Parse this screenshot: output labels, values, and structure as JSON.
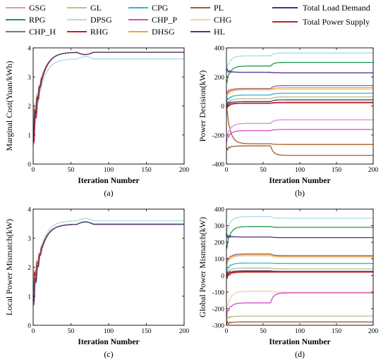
{
  "legend": {
    "items": [
      {
        "name": "GSG",
        "color": "#d88fd8"
      },
      {
        "name": "GL",
        "color": "#bdbd86"
      },
      {
        "name": "CPG",
        "color": "#2ab8d8"
      },
      {
        "name": "PL",
        "color": "#a85a28"
      },
      {
        "name": "RPG",
        "color": "#1f9a4f"
      },
      {
        "name": "DPSG",
        "color": "#a7dde3"
      },
      {
        "name": "CHP_P",
        "color": "#d84ad0"
      },
      {
        "name": "CHG",
        "color": "#f0cfb0"
      },
      {
        "name": "CHP_H",
        "color": "#8b6a8b"
      },
      {
        "name": "RHG",
        "color": "#c81e1e"
      },
      {
        "name": "DHSG",
        "color": "#f2a53a"
      },
      {
        "name": "HL",
        "color": "#4a3a7a"
      }
    ],
    "totals": [
      {
        "name": "Total Load Demand",
        "color": "#4b2a8c"
      },
      {
        "name": "Total Power Supply",
        "color": "#b5282e"
      }
    ]
  },
  "chart_data": [
    {
      "id": "a",
      "type": "line",
      "caption": "(a)",
      "xlabel": "Iteration Number",
      "ylabel": "Marginal Cost(Yuan/kWh)",
      "xlim": [
        0,
        200
      ],
      "ylim": [
        0,
        4
      ],
      "xticks": [
        0,
        50,
        100,
        150,
        200
      ],
      "yticks": [
        0,
        1,
        2,
        3,
        4
      ],
      "curve": "consensus",
      "series": [
        {
          "name": "GSG",
          "final": 3.85,
          "start": 0.5
        },
        {
          "name": "GL",
          "final": 3.85,
          "start": 1.2
        },
        {
          "name": "CPG",
          "final": 3.85,
          "start": 0.9
        },
        {
          "name": "PL",
          "final": 3.85,
          "start": 1.5
        },
        {
          "name": "RPG",
          "final": 3.85,
          "start": 1.1
        },
        {
          "name": "DPSG",
          "final": 3.62,
          "start": 0.8
        },
        {
          "name": "CHP_P",
          "final": 3.85,
          "start": 1.3
        },
        {
          "name": "CHG",
          "final": 3.85,
          "start": 1.6
        },
        {
          "name": "CHP_H",
          "final": 3.85,
          "start": 1.0
        },
        {
          "name": "RHG",
          "final": 3.85,
          "start": 0.7
        },
        {
          "name": "DHSG",
          "final": 3.85,
          "start": 1.4
        },
        {
          "name": "HL",
          "final": 3.85,
          "start": 1.2
        }
      ]
    },
    {
      "id": "b",
      "type": "line",
      "caption": "(b)",
      "xlabel": "Iteration Number",
      "ylabel": "Power Decision(kW)",
      "xlim": [
        0,
        200
      ],
      "ylim": [
        -400,
        400
      ],
      "xticks": [
        0,
        50,
        100,
        150,
        200
      ],
      "yticks": [
        -400,
        -200,
        0,
        200,
        400
      ],
      "curve": "step",
      "series": [
        {
          "name": "DPSG",
          "start": 250,
          "mid": 345,
          "final": 365
        },
        {
          "name": "RPG",
          "start": 160,
          "mid": 275,
          "final": 300
        },
        {
          "name": "Total Load Demand",
          "start": 245,
          "mid": 232,
          "final": 228
        },
        {
          "name": "CHP_H",
          "start": 90,
          "mid": 120,
          "final": 140
        },
        {
          "name": "DHSG",
          "start": 70,
          "mid": 115,
          "final": 125
        },
        {
          "name": "CHG",
          "start": 60,
          "mid": 110,
          "final": 115
        },
        {
          "name": "CPG",
          "start": 30,
          "mid": 75,
          "final": 88
        },
        {
          "name": "GL",
          "start": 10,
          "mid": 50,
          "final": 62
        },
        {
          "name": "HL",
          "start": 10,
          "mid": 30,
          "final": 42
        },
        {
          "name": "RHG",
          "start": -10,
          "mid": 18,
          "final": 22
        },
        {
          "name": "Total Power Supply",
          "start": 0,
          "mid": 20,
          "final": 25
        },
        {
          "name": "PL",
          "start": 5,
          "mid": -260,
          "final": -265
        },
        {
          "name": "CHP_P",
          "start": -240,
          "mid": -170,
          "final": -162
        },
        {
          "name": "GSG",
          "start": -230,
          "mid": -120,
          "final": -95
        },
        {
          "name": "PL",
          "start": -300,
          "mid": -275,
          "final": -340
        }
      ]
    },
    {
      "id": "c",
      "type": "line",
      "caption": "(c)",
      "xlabel": "Iteration Number",
      "ylabel": "Local Power Mismatch(kW)",
      "xlim": [
        0,
        200
      ],
      "ylim": [
        0,
        4
      ],
      "xticks": [
        0,
        50,
        100,
        150,
        200
      ],
      "yticks": [
        0,
        1,
        2,
        3,
        4
      ],
      "curve": "consensus",
      "series": [
        {
          "name": "GSG",
          "final": 3.48,
          "start": 0.6
        },
        {
          "name": "GL",
          "final": 3.48,
          "start": 1.0
        },
        {
          "name": "CPG",
          "final": 3.48,
          "start": 0.8
        },
        {
          "name": "PL",
          "final": 3.48,
          "start": 1.4
        },
        {
          "name": "RPG",
          "final": 3.48,
          "start": 1.1
        },
        {
          "name": "DPSG",
          "final": 3.6,
          "start": 0.9
        },
        {
          "name": "CHP_P",
          "final": 3.48,
          "start": 1.2
        },
        {
          "name": "CHG",
          "final": 3.48,
          "start": 1.5
        },
        {
          "name": "CHP_H",
          "final": 3.48,
          "start": 0.7
        },
        {
          "name": "RHG",
          "final": 3.48,
          "start": 1.3
        },
        {
          "name": "DHSG",
          "final": 3.48,
          "start": 1.0
        },
        {
          "name": "HL",
          "final": 3.48,
          "start": 0.9
        }
      ]
    },
    {
      "id": "d",
      "type": "line",
      "caption": "(d)",
      "xlabel": "Iteration Number",
      "ylabel": "Global Power Mismatch(kW)",
      "xlim": [
        0,
        200
      ],
      "ylim": [
        -300,
        400
      ],
      "xticks": [
        0,
        50,
        100,
        150,
        200
      ],
      "yticks": [
        -300,
        -200,
        -100,
        0,
        100,
        200,
        300,
        400
      ],
      "curve": "step",
      "series": [
        {
          "name": "DPSG",
          "start": 250,
          "mid": 355,
          "final": 345
        },
        {
          "name": "RPG",
          "start": 160,
          "mid": 295,
          "final": 290
        },
        {
          "name": "Total Load Demand",
          "start": 240,
          "mid": 232,
          "final": 228
        },
        {
          "name": "CHP_H",
          "start": 80,
          "mid": 130,
          "final": 120
        },
        {
          "name": "DHSG",
          "start": 70,
          "mid": 125,
          "final": 115
        },
        {
          "name": "CHG",
          "start": 60,
          "mid": 118,
          "final": 110
        },
        {
          "name": "CPG",
          "start": 30,
          "mid": 75,
          "final": 72
        },
        {
          "name": "GL",
          "start": 10,
          "mid": 45,
          "final": 40
        },
        {
          "name": "HL",
          "start": 5,
          "mid": 28,
          "final": 25
        },
        {
          "name": "RHG",
          "start": -10,
          "mid": 20,
          "final": 20
        },
        {
          "name": "Total Power Supply",
          "start": 0,
          "mid": 25,
          "final": 22
        },
        {
          "name": "CHG",
          "start": -220,
          "mid": -95,
          "final": -100
        },
        {
          "name": "CHP_P",
          "start": -240,
          "mid": -165,
          "final": -105
        },
        {
          "name": "GL",
          "start": -260,
          "mid": -245,
          "final": -245
        },
        {
          "name": "PL",
          "start": -290,
          "mid": -280,
          "final": -280
        }
      ]
    }
  ]
}
